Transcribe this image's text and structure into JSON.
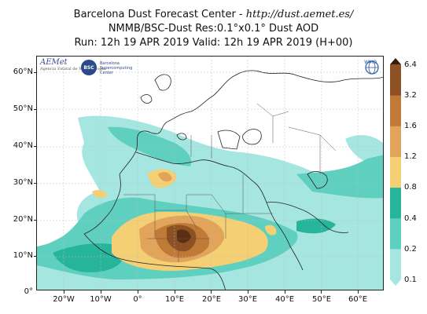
{
  "header": {
    "line1_prefix": "Barcelona Dust Forecast Center - ",
    "line1_url": "http://dust.aemet.es/",
    "line2": "NMMB/BSC-Dust   Res:0.1°x0.1°   Dust AOD",
    "line3": "Run: 12h 19 APR 2019   Valid: 12h 19 APR 2019 (H+00)"
  },
  "axes": {
    "lat_labels": [
      "60°N",
      "50°N",
      "40°N",
      "30°N",
      "20°N",
      "10°N",
      "0°"
    ],
    "lon_labels": [
      "20°W",
      "10°W",
      "0°",
      "10°E",
      "20°E",
      "30°E",
      "40°E",
      "50°E",
      "60°E"
    ]
  },
  "colorbar": {
    "levels": [
      "0.1",
      "0.2",
      "0.4",
      "0.8",
      "1.2",
      "1.6",
      "3.2",
      "6.4"
    ],
    "colors": [
      "#a6e6e0",
      "#5fcfbf",
      "#26b49a",
      "#f4cf73",
      "#e2a45a",
      "#c07a37",
      "#8e5124",
      "#5a2f12",
      "#3a1c0a"
    ]
  },
  "logos": {
    "aemet": "AEMet",
    "aemet_sub": "Agencia Estatal de Meteorología",
    "bsc": "BSC",
    "bsc_text": "Barcelona Supercomputing Center",
    "wmo": "WMO"
  }
}
